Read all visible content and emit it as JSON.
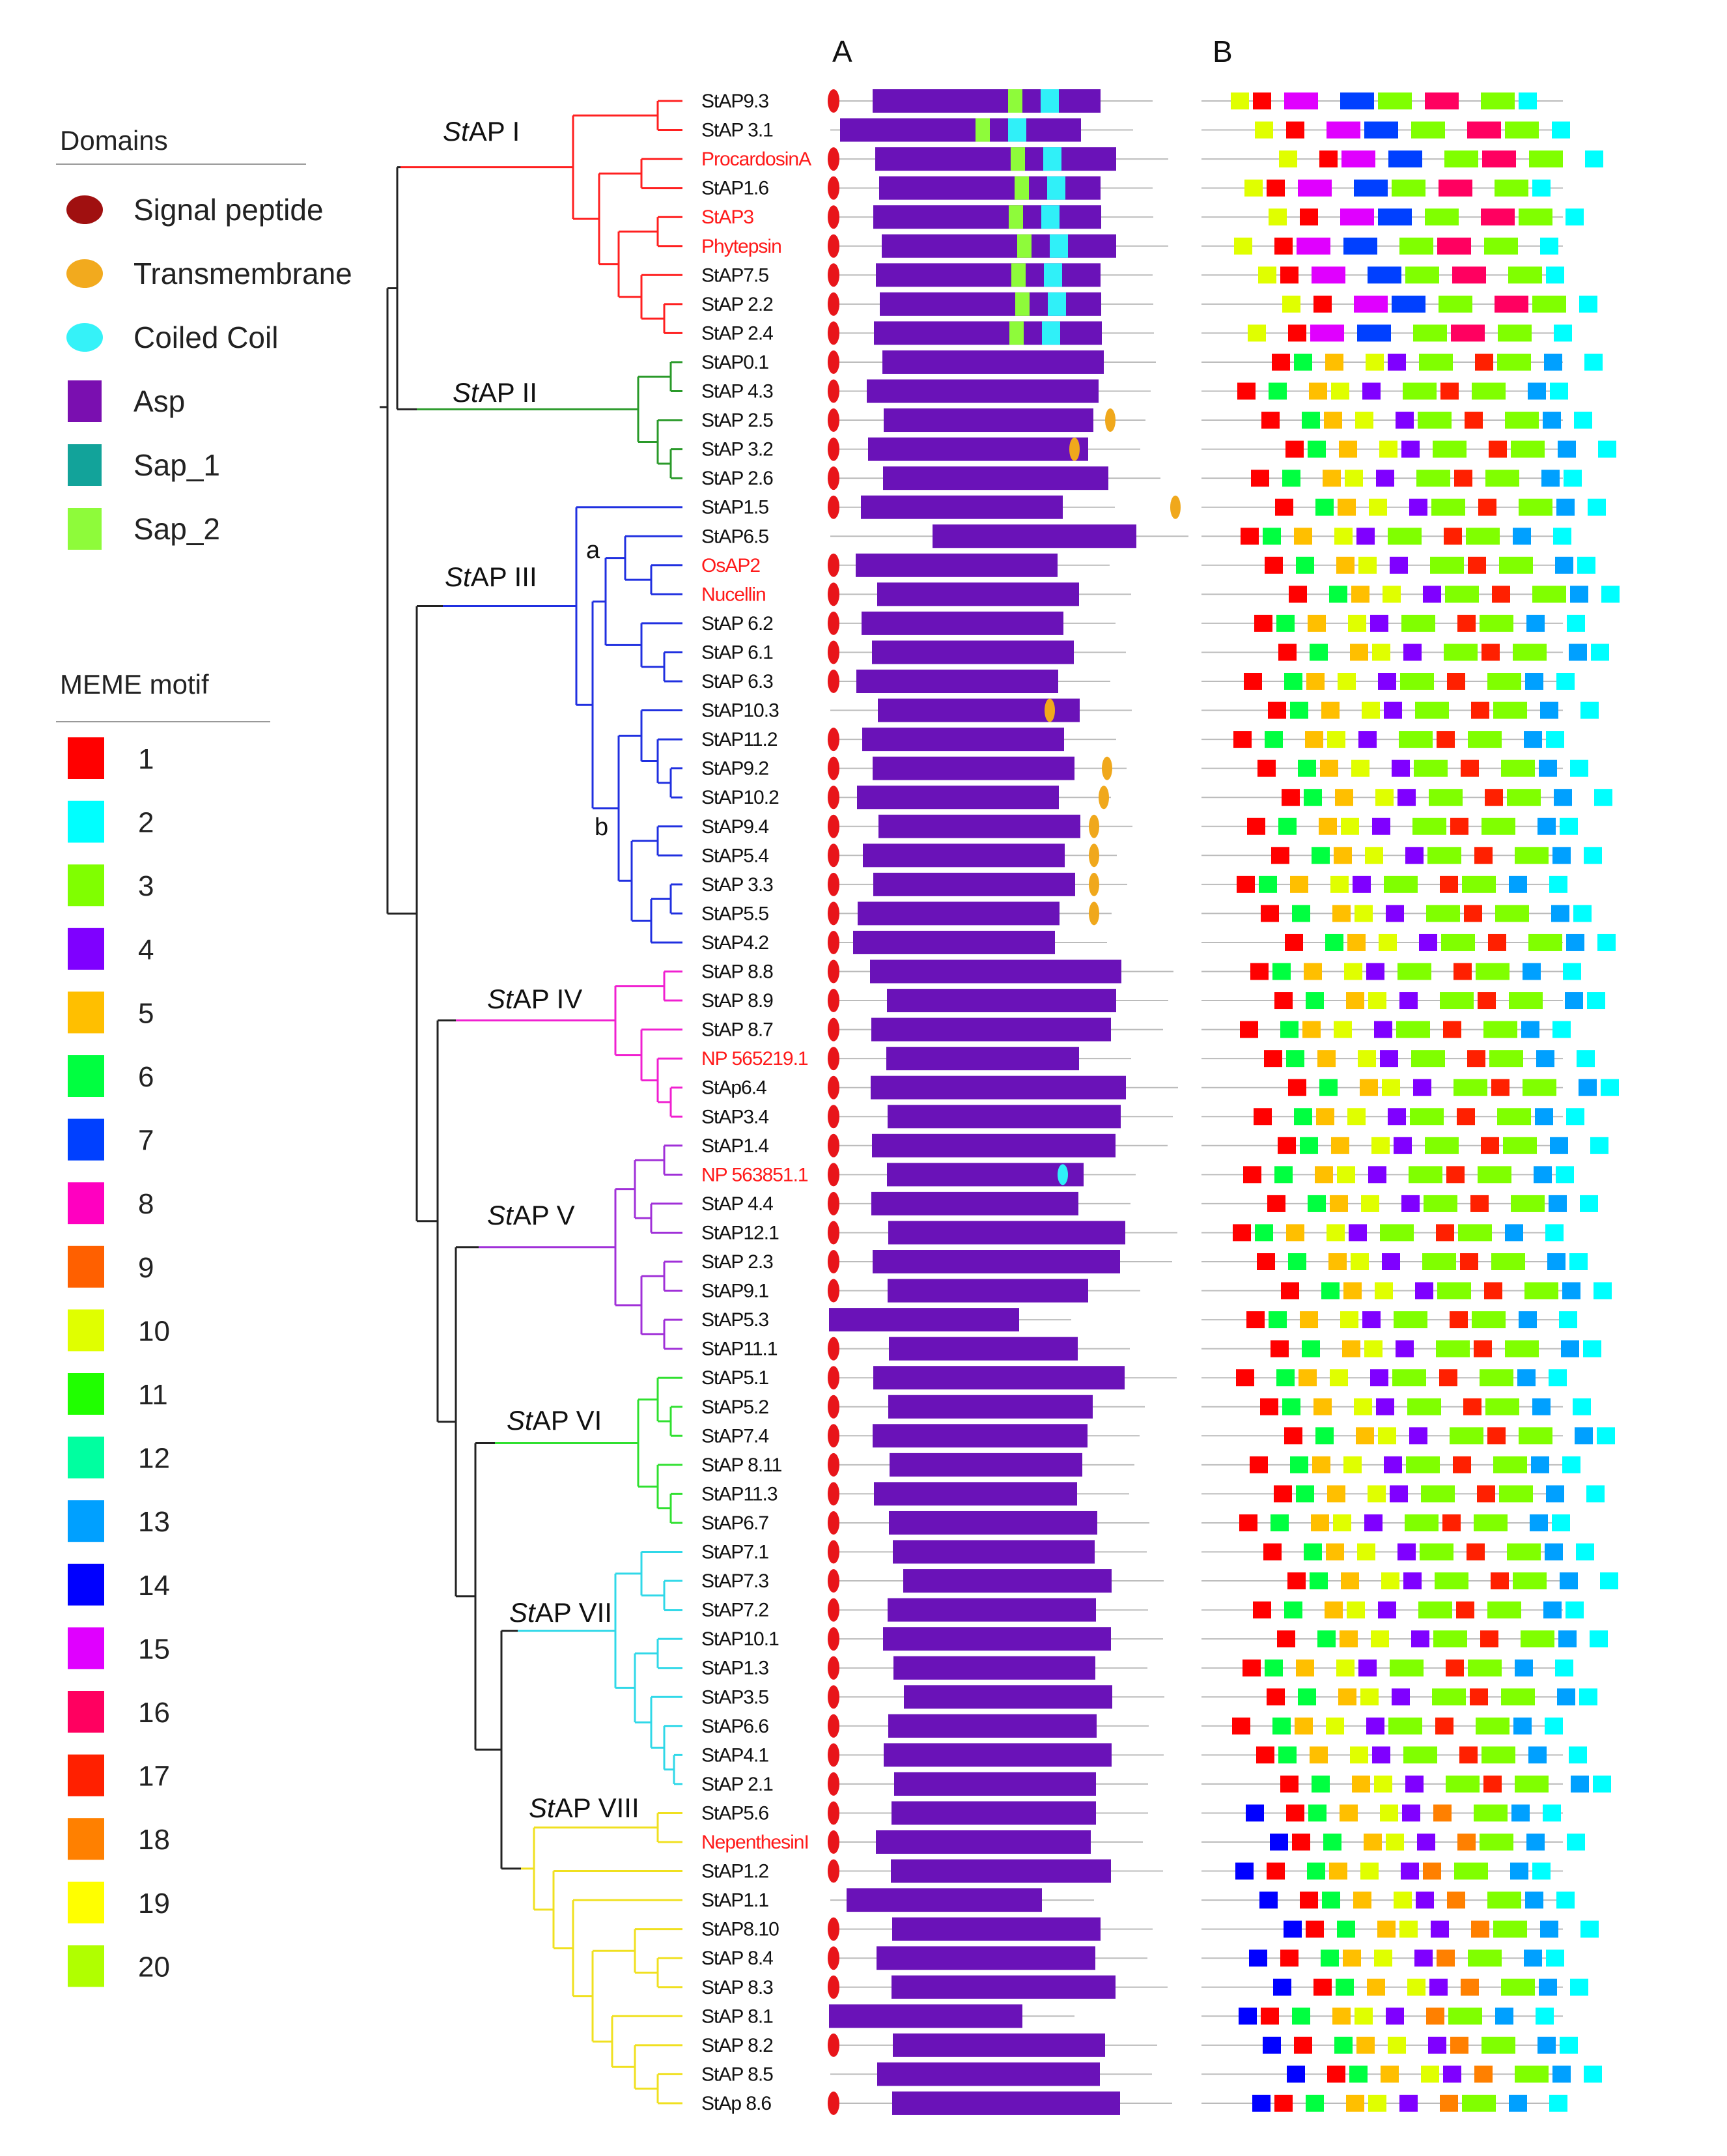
{
  "legend": {
    "domains_title": "Domains",
    "domain_items": [
      {
        "label": "Signal peptide",
        "color": "#a01010",
        "shape": "ellipse"
      },
      {
        "label": "Transmembrane",
        "color": "#f2aa1e",
        "shape": "ellipse"
      },
      {
        "label": "Coiled Coil",
        "color": "#35f2f8",
        "shape": "ellipse"
      },
      {
        "label": "Asp",
        "color": "#7a0fb0",
        "shape": "rect"
      },
      {
        "label": "Sap_1",
        "color": "#12a39a",
        "shape": "rect"
      },
      {
        "label": "Sap_2",
        "color": "#8efb3a",
        "shape": "rect"
      }
    ],
    "meme_title": "MEME motif",
    "motif_items": [
      {
        "num": "1",
        "color": "#ff0000"
      },
      {
        "num": "2",
        "color": "#00ffff"
      },
      {
        "num": "3",
        "color": "#80ff00"
      },
      {
        "num": "4",
        "color": "#7f00ff"
      },
      {
        "num": "5",
        "color": "#ffbf00"
      },
      {
        "num": "6",
        "color": "#00ff40"
      },
      {
        "num": "7",
        "color": "#0040ff"
      },
      {
        "num": "8",
        "color": "#ff00c0"
      },
      {
        "num": "9",
        "color": "#ff6000"
      },
      {
        "num": "10",
        "color": "#e0ff00"
      },
      {
        "num": "11",
        "color": "#20ff00"
      },
      {
        "num": "12",
        "color": "#00ffa0"
      },
      {
        "num": "13",
        "color": "#00a0ff"
      },
      {
        "num": "14",
        "color": "#0000ff"
      },
      {
        "num": "15",
        "color": "#e000ff"
      },
      {
        "num": "16",
        "color": "#ff0060"
      },
      {
        "num": "17",
        "color": "#ff2000"
      },
      {
        "num": "18",
        "color": "#ff8000"
      },
      {
        "num": "19",
        "color": "#ffff00"
      },
      {
        "num": "20",
        "color": "#b0ff00"
      }
    ]
  },
  "panel_labels": {
    "a": "A",
    "b": "B"
  },
  "subclade_labels": [
    "a",
    "b"
  ],
  "clades": [
    {
      "prefix": "St",
      "suffix": "AP I",
      "color": "#ff2020"
    },
    {
      "prefix": "St",
      "suffix": "AP II",
      "color": "#2a9a2a"
    },
    {
      "prefix": "St",
      "suffix": "AP III",
      "color": "#2030e0"
    },
    {
      "prefix": "St",
      "suffix": "AP IV",
      "color": "#f020d0"
    },
    {
      "prefix": "St",
      "suffix": "AP V",
      "color": "#a030d8"
    },
    {
      "prefix": "St",
      "suffix": "AP VI",
      "color": "#30e030"
    },
    {
      "prefix": "St",
      "suffix": "AP VII",
      "color": "#30d8e8"
    },
    {
      "prefix": "St",
      "suffix": "AP VIII",
      "color": "#f0e020"
    }
  ],
  "leaves": [
    {
      "name": "StAP9.3",
      "clade": 1,
      "red": false
    },
    {
      "name": "StAP 3.1",
      "clade": 1,
      "red": false
    },
    {
      "name": "ProcardosinA",
      "clade": 1,
      "red": true
    },
    {
      "name": "StAP1.6",
      "clade": 1,
      "red": false
    },
    {
      "name": "StAP3",
      "clade": 1,
      "red": true
    },
    {
      "name": "Phytepsin",
      "clade": 1,
      "red": true
    },
    {
      "name": "StAP7.5",
      "clade": 1,
      "red": false
    },
    {
      "name": "StAP 2.2",
      "clade": 1,
      "red": false
    },
    {
      "name": "StAP 2.4",
      "clade": 1,
      "red": false
    },
    {
      "name": "StAP0.1",
      "clade": 2,
      "red": false
    },
    {
      "name": "StAP 4.3",
      "clade": 2,
      "red": false
    },
    {
      "name": "StAP 2.5",
      "clade": 2,
      "red": false
    },
    {
      "name": "StAP 3.2",
      "clade": 2,
      "red": false
    },
    {
      "name": "StAP 2.6",
      "clade": 2,
      "red": false
    },
    {
      "name": "StAP1.5",
      "clade": 3,
      "red": false
    },
    {
      "name": "StAP6.5",
      "clade": 3,
      "red": false
    },
    {
      "name": "OsAP2",
      "clade": 3,
      "red": true
    },
    {
      "name": "Nucellin",
      "clade": 3,
      "red": true
    },
    {
      "name": "StAP 6.2",
      "clade": 3,
      "red": false
    },
    {
      "name": "StAP 6.1",
      "clade": 3,
      "red": false
    },
    {
      "name": "StAP 6.3",
      "clade": 3,
      "red": false
    },
    {
      "name": "StAP10.3",
      "clade": 3,
      "red": false
    },
    {
      "name": "StAP11.2",
      "clade": 3,
      "red": false
    },
    {
      "name": "StAP9.2",
      "clade": 3,
      "red": false
    },
    {
      "name": "StAP10.2",
      "clade": 3,
      "red": false
    },
    {
      "name": "StAP9.4",
      "clade": 3,
      "red": false
    },
    {
      "name": "StAP5.4",
      "clade": 3,
      "red": false
    },
    {
      "name": "StAP 3.3",
      "clade": 3,
      "red": false
    },
    {
      "name": "StAP5.5",
      "clade": 3,
      "red": false
    },
    {
      "name": "StAP4.2",
      "clade": 3,
      "red": false
    },
    {
      "name": "StAP 8.8",
      "clade": 4,
      "red": false
    },
    {
      "name": "StAP 8.9",
      "clade": 4,
      "red": false
    },
    {
      "name": "StAP 8.7",
      "clade": 4,
      "red": false
    },
    {
      "name": "NP 565219.1",
      "clade": 4,
      "red": true
    },
    {
      "name": "StAp6.4",
      "clade": 4,
      "red": false
    },
    {
      "name": "StAP3.4",
      "clade": 4,
      "red": false
    },
    {
      "name": "StAP1.4",
      "clade": 5,
      "red": false
    },
    {
      "name": "NP 563851.1",
      "clade": 5,
      "red": true
    },
    {
      "name": "StAP 4.4",
      "clade": 5,
      "red": false
    },
    {
      "name": "StAP12.1",
      "clade": 5,
      "red": false
    },
    {
      "name": "StAP 2.3",
      "clade": 5,
      "red": false
    },
    {
      "name": "StAP9.1",
      "clade": 5,
      "red": false
    },
    {
      "name": "StAP5.3",
      "clade": 5,
      "red": false
    },
    {
      "name": "StAP11.1",
      "clade": 5,
      "red": false
    },
    {
      "name": "StAP5.1",
      "clade": 6,
      "red": false
    },
    {
      "name": "StAP5.2",
      "clade": 6,
      "red": false
    },
    {
      "name": "StAP7.4",
      "clade": 6,
      "red": false
    },
    {
      "name": "StAP 8.11",
      "clade": 6,
      "red": false
    },
    {
      "name": "StAP11.3",
      "clade": 6,
      "red": false
    },
    {
      "name": "StAP6.7",
      "clade": 6,
      "red": false
    },
    {
      "name": "StAP7.1",
      "clade": 7,
      "red": false
    },
    {
      "name": "StAP7.3",
      "clade": 7,
      "red": false
    },
    {
      "name": "StAP7.2",
      "clade": 7,
      "red": false
    },
    {
      "name": "StAP10.1",
      "clade": 7,
      "red": false
    },
    {
      "name": "StAP1.3",
      "clade": 7,
      "red": false
    },
    {
      "name": "StAP3.5",
      "clade": 7,
      "red": false
    },
    {
      "name": "StAP6.6",
      "clade": 7,
      "red": false
    },
    {
      "name": "StAP4.1",
      "clade": 7,
      "red": false
    },
    {
      "name": "StAP 2.1",
      "clade": 7,
      "red": false
    },
    {
      "name": "StAP5.6",
      "clade": 8,
      "red": false
    },
    {
      "name": "NepenthesinI",
      "clade": 8,
      "red": true
    },
    {
      "name": "StAP1.2",
      "clade": 8,
      "red": false
    },
    {
      "name": "StAP1.1",
      "clade": 8,
      "red": false
    },
    {
      "name": "StAP8.10",
      "clade": 8,
      "red": false
    },
    {
      "name": "StAP 8.4",
      "clade": 8,
      "red": false
    },
    {
      "name": "StAP 8.3",
      "clade": 8,
      "red": false
    },
    {
      "name": "StAP 8.1",
      "clade": 8,
      "red": false
    },
    {
      "name": "StAP 8.2",
      "clade": 8,
      "red": false
    },
    {
      "name": "StAP 8.5",
      "clade": 8,
      "red": false
    },
    {
      "name": "StAp 8.6",
      "clade": 8,
      "red": false
    }
  ]
}
